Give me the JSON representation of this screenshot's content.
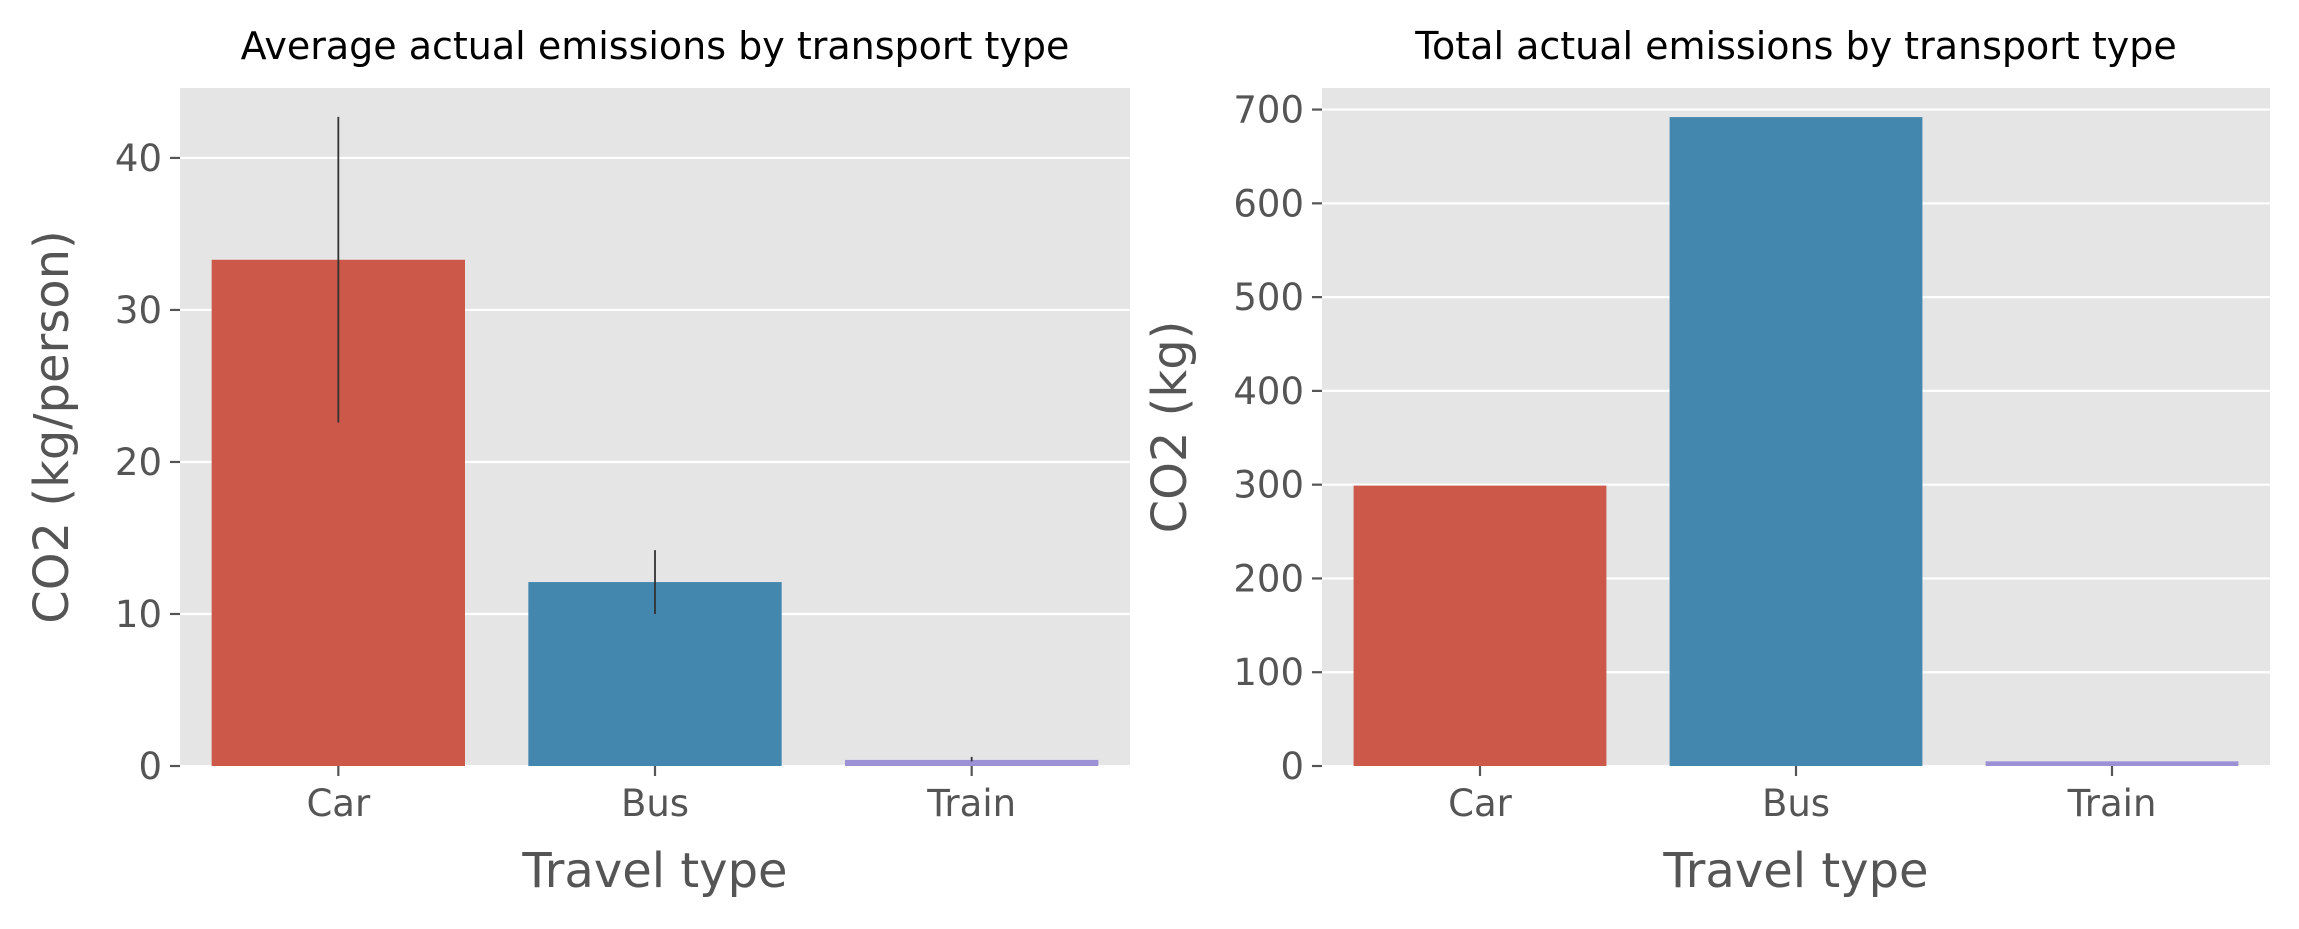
{
  "chart_data": [
    {
      "type": "bar",
      "title": "Average actual emissions by transport type",
      "xlabel": "Travel type",
      "ylabel": "CO2 (kg/person)",
      "categories": [
        "Car",
        "Bus",
        "Train"
      ],
      "values": [
        33.3,
        12.1,
        0.4
      ],
      "error_bars": [
        [
          22.6,
          42.7
        ],
        [
          10.0,
          14.2
        ],
        [
          0.3,
          0.6
        ]
      ],
      "colors": [
        "#cc584a",
        "#4487ae",
        "#9d91d6"
      ],
      "ylim": [
        0,
        44.6
      ],
      "yticks": [
        0,
        10,
        20,
        30,
        40
      ],
      "grid": true,
      "legend": "none"
    },
    {
      "type": "bar",
      "title": "Total actual emissions by transport type",
      "xlabel": "Travel type",
      "ylabel": "CO2 (kg)",
      "categories": [
        "Car",
        "Bus",
        "Train"
      ],
      "values": [
        299,
        692,
        5
      ],
      "colors": [
        "#cc584a",
        "#4487ae",
        "#9d91d6"
      ],
      "ylim": [
        0,
        723
      ],
      "yticks": [
        0,
        100,
        200,
        300,
        400,
        500,
        600,
        700
      ],
      "grid": true,
      "legend": "none"
    }
  ]
}
